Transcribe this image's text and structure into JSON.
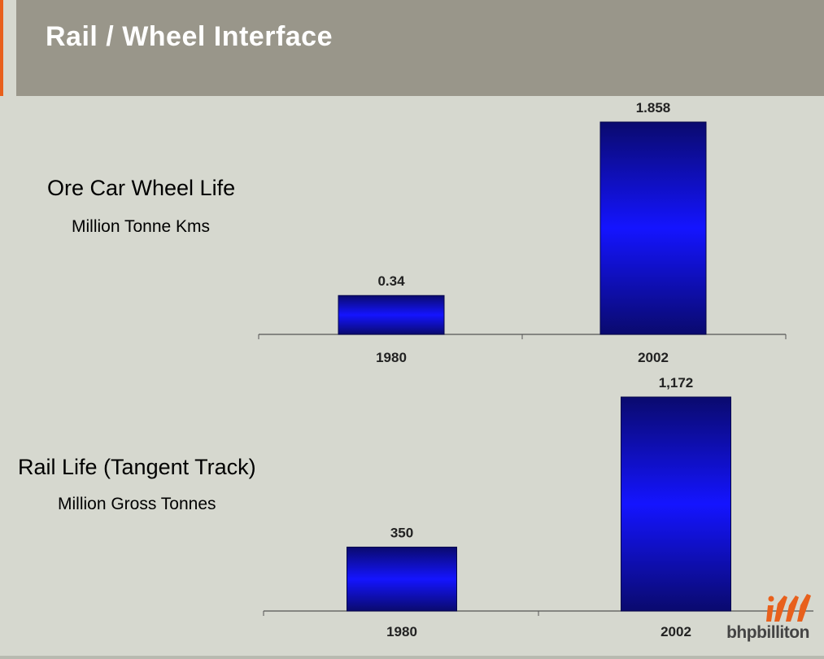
{
  "slide": {
    "title": "Rail / Wheel Interface",
    "logo_text": "bhpbilliton",
    "colors": {
      "title_bar": "#99968a",
      "background": "#d6d8cf",
      "bar_dark": "#0a0a6e",
      "bar_bright": "#1414ff",
      "accent": "#e8601c"
    }
  },
  "charts": [
    {
      "label": "Ore Car Wheel Life",
      "sublabel": "Million Tonne Kms"
    },
    {
      "label": "Rail Life (Tangent Track)",
      "sublabel": "Million Gross Tonnes"
    }
  ],
  "chart_data": [
    {
      "type": "bar",
      "title": "Ore Car Wheel Life",
      "ylabel": "Million Tonne Kms",
      "categories": [
        "1980",
        "2002"
      ],
      "values": [
        0.34,
        1.858
      ],
      "data_labels": [
        "0.34",
        "1.858"
      ],
      "ylim": [
        0,
        1.858
      ],
      "grid": false,
      "legend": "none"
    },
    {
      "type": "bar",
      "title": "Rail Life (Tangent Track)",
      "ylabel": "Million Gross Tonnes",
      "categories": [
        "1980",
        "2002"
      ],
      "values": [
        350,
        1172
      ],
      "data_labels": [
        "350",
        "1,172"
      ],
      "ylim": [
        0,
        1172
      ],
      "grid": false,
      "legend": "none"
    }
  ]
}
